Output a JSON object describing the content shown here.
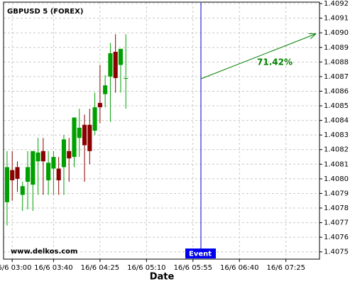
{
  "chart_data": {
    "type": "candlestick",
    "title": "GBPUSD 5 (FOREX)",
    "x_label": "Date",
    "watermark": "www.delkos.com",
    "event_label": "Event",
    "annotation": "71.42%",
    "grid": true,
    "up_color": "#00a000",
    "down_color": "#8b0000",
    "ylim": [
      1.40745,
      1.40921
    ],
    "yticks": [
      1.4075,
      1.4076,
      1.4077,
      1.4078,
      1.4079,
      {
        "value": 1.408,
        "label": "1.4080"
      },
      1.4081,
      1.4082,
      1.4083,
      1.4084,
      1.4085,
      1.4086,
      1.4087,
      1.4088,
      1.4089,
      {
        "value": 1.409,
        "label": "1.4090"
      },
      1.4091,
      1.4092
    ],
    "categories": [
      null,
      "16/6 03:00",
      null,
      null,
      null,
      null,
      null,
      null,
      null,
      "16/6 03:40",
      null,
      null,
      null,
      null,
      null,
      null,
      null,
      null,
      "16/6 04:25",
      null,
      null,
      null,
      null,
      null,
      null,
      null,
      null,
      "16/6 05:10",
      null,
      null,
      null,
      null,
      null,
      null,
      null,
      null,
      "16/6 05:55",
      null,
      null,
      null,
      null,
      null,
      null,
      null,
      null,
      "16/6 06:40",
      null,
      null,
      null,
      null,
      null,
      null,
      null,
      null,
      "16/6 07:25",
      null,
      null,
      null,
      null,
      null,
      null
    ],
    "open": [
      1.40784,
      1.40806,
      1.40808,
      1.40789,
      1.40798,
      1.40796,
      1.40812,
      1.40819,
      1.40799,
      1.40807,
      1.40807,
      1.40808,
      1.40819,
      1.40815,
      1.40828,
      1.40837,
      1.40837,
      1.40833,
      1.40852,
      1.40858,
      1.4087,
      1.40887,
      1.40878,
      1.40869,
      null,
      null,
      null,
      null,
      null,
      null,
      null,
      null,
      null,
      null,
      null,
      null,
      null,
      null,
      null,
      null,
      null,
      null,
      null,
      null,
      null,
      null,
      null,
      null,
      null,
      null,
      null,
      null,
      null,
      null,
      null,
      null,
      null,
      null,
      null,
      null,
      null
    ],
    "high": [
      1.40819,
      1.40819,
      1.40812,
      1.40798,
      1.40819,
      1.40819,
      1.40828,
      1.40828,
      1.40819,
      1.40819,
      1.40815,
      1.4083,
      1.40828,
      1.40842,
      1.40848,
      1.40844,
      1.40848,
      1.40859,
      1.40878,
      1.40871,
      1.40893,
      1.40899,
      1.40889,
      1.40899,
      null,
      null,
      null,
      null,
      null,
      null,
      null,
      null,
      null,
      null,
      null,
      null,
      null,
      null,
      null,
      null,
      null,
      null,
      null,
      null,
      null,
      null,
      null,
      null,
      null,
      null,
      null,
      null,
      null,
      null,
      null,
      null,
      null,
      null,
      null,
      null,
      null
    ],
    "low": [
      1.40768,
      1.40785,
      1.40791,
      1.40778,
      1.40779,
      1.40778,
      1.40789,
      1.40789,
      1.40789,
      1.40789,
      1.40789,
      1.40789,
      1.40798,
      1.40808,
      1.40815,
      1.40798,
      1.4081,
      1.4083,
      1.40838,
      1.40849,
      1.40839,
      1.40859,
      1.40859,
      1.40848,
      null,
      null,
      null,
      null,
      null,
      null,
      null,
      null,
      null,
      null,
      null,
      null,
      null,
      null,
      null,
      null,
      null,
      null,
      null,
      null,
      null,
      null,
      null,
      null,
      null,
      null,
      null,
      null,
      null,
      null,
      null,
      null,
      null,
      null,
      null,
      null,
      null
    ],
    "close": [
      1.40808,
      1.40799,
      1.408,
      1.40795,
      1.40808,
      1.40819,
      1.40818,
      1.40812,
      1.40811,
      1.40815,
      1.40799,
      1.40827,
      1.40814,
      1.40842,
      1.40835,
      1.40823,
      1.40819,
      1.40849,
      1.40849,
      1.40864,
      1.40886,
      1.40869,
      1.40889,
      1.40869,
      null,
      null,
      null,
      null,
      null,
      null,
      null,
      null,
      null,
      null,
      null,
      null,
      null,
      null,
      null,
      null,
      null,
      null,
      null,
      null,
      null,
      null,
      null,
      null,
      null,
      null,
      null,
      null,
      null,
      null,
      null,
      null,
      null,
      null,
      null,
      null,
      null
    ]
  }
}
